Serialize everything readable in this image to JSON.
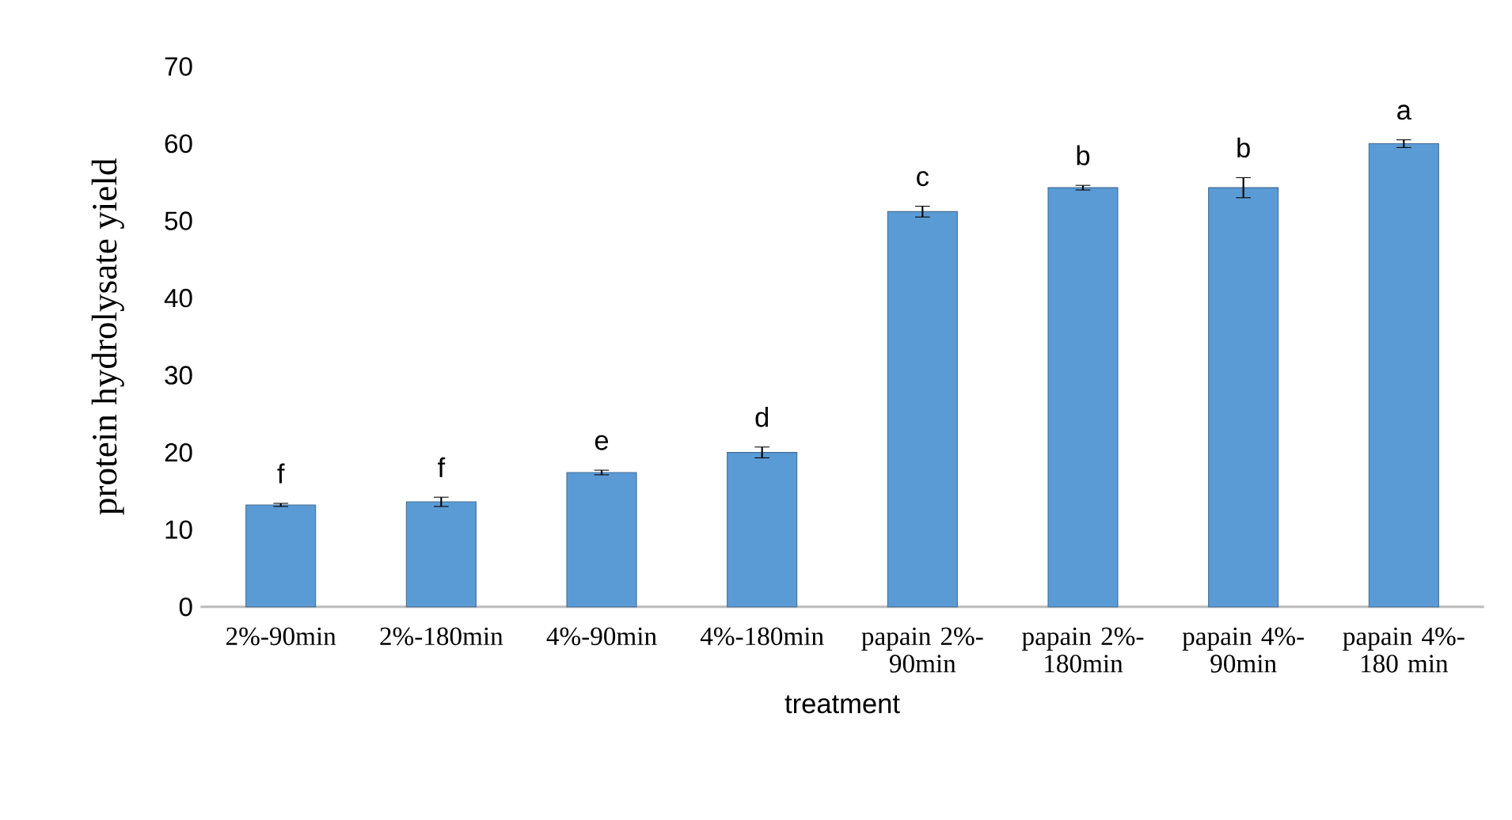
{
  "chart_data": {
    "type": "bar",
    "xlabel": "treatment",
    "ylabel": "protein hydrolysate  yield",
    "categories": [
      "2%-90min",
      "2%-180min",
      "4%-90min",
      "4%-180min",
      "papain 2%-90min",
      "papain 2%-180min",
      "papain 4%-90min",
      "papain 4%-180 min"
    ],
    "values": [
      13.2,
      13.6,
      17.4,
      20.0,
      51.2,
      54.3,
      54.3,
      60.0
    ],
    "errors": [
      0.2,
      0.6,
      0.3,
      0.7,
      0.7,
      0.3,
      1.3,
      0.5
    ],
    "color": "#5b9bd5",
    "ylim": [
      0,
      70
    ],
    "yticks": [
      0,
      10,
      20,
      30,
      40,
      50,
      60,
      70
    ],
    "grid": false,
    "annotations": [
      "f",
      "f",
      "e",
      "d",
      "c",
      "b",
      "b",
      "a"
    ]
  }
}
